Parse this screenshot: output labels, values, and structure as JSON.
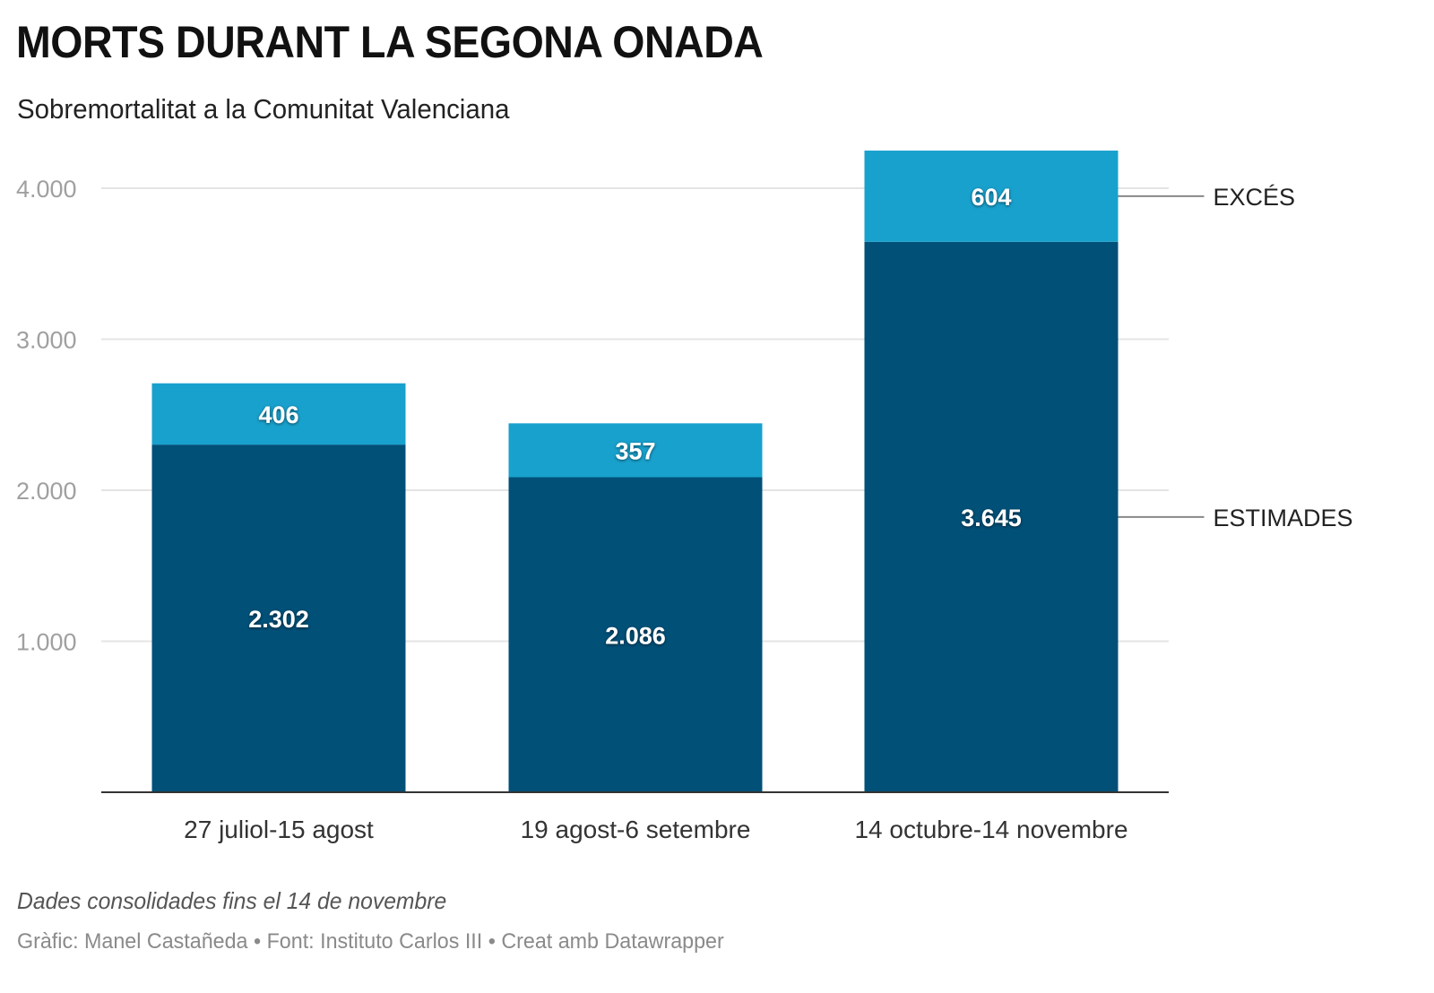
{
  "header": {
    "title": "MORTS DURANT LA SEGONA ONADA",
    "subtitle": "Sobremortalitat a la Comunitat Valenciana"
  },
  "footer": {
    "notes": "Dades consolidades fins el 14 de novembre",
    "byline": "Gràfic: Manel Castañeda • Font: Instituto Carlos III • Creat amb Datawrapper"
  },
  "colors": {
    "estimades": "#005078",
    "exces": "#18a1cd",
    "grid": "#e4e4e4",
    "axis": "#333333",
    "leader": "#888888"
  },
  "chart_data": {
    "type": "bar",
    "stacked": true,
    "title": "MORTS DURANT LA SEGONA ONADA",
    "subtitle": "Sobremortalitat a la Comunitat Valenciana",
    "xlabel": "",
    "ylabel": "",
    "categories": [
      "27 juliol-15 agost",
      "19 agost-6 setembre",
      "14 octubre-14 novembre"
    ],
    "series": [
      {
        "name": "ESTIMADES",
        "values": [
          2302,
          2086,
          3645
        ],
        "labels": [
          "2.302",
          "2.086",
          "3.645"
        ]
      },
      {
        "name": "EXCÉS",
        "values": [
          406,
          357,
          604
        ],
        "labels": [
          "406",
          "357",
          "604"
        ]
      }
    ],
    "ylim": [
      0,
      4000
    ],
    "yticks": [
      1000,
      2000,
      3000,
      4000
    ],
    "ytick_labels": [
      "1.000",
      "2.000",
      "3.000",
      "4.000"
    ],
    "grid": true,
    "legend": "right (direct labels on last bar)"
  }
}
